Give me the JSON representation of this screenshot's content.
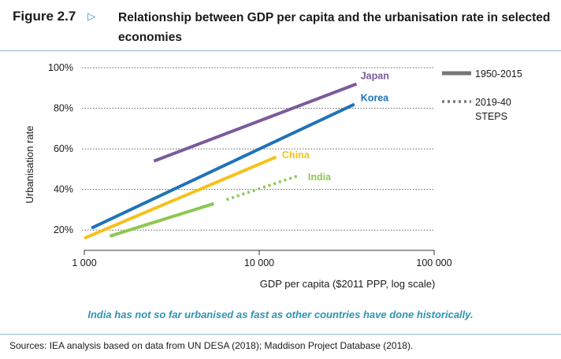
{
  "figure": {
    "label": "Figure 2.7",
    "arrow_icon": "triangle-right-outline-icon",
    "title": "Relationship between GDP per capita and the urbanisation rate in selected economies",
    "caption": "India has not so far urbanised as fast as other countries have done historically.",
    "source": "Sources: IEA analysis based on data from UN DESA (2018); Maddison Project Database (2018)."
  },
  "chart_data": {
    "type": "line",
    "title": "Relationship between GDP per capita and the urbanisation rate in selected economies",
    "xlabel": "GDP per capita ($2011 PPP, log scale)",
    "ylabel": "Urbanisation rate",
    "x_scale": "log",
    "xlim": [
      1000,
      100000
    ],
    "ylim": [
      10,
      100
    ],
    "x_ticks": [
      1000,
      10000,
      100000
    ],
    "x_tick_labels": [
      "1 000",
      "10 000",
      "100 000"
    ],
    "y_ticks": [
      20,
      40,
      60,
      80,
      100
    ],
    "y_tick_labels": [
      "20%",
      "40%",
      "60%",
      "80%",
      "100%"
    ],
    "grid": "horizontal dotted",
    "legend_position": "right",
    "legend": [
      {
        "label": "1950-2015",
        "style": "solid"
      },
      {
        "label": "2019-40 STEPS",
        "style": "dotted"
      }
    ],
    "series": [
      {
        "name": "Japan",
        "color": "#7b5a9c",
        "style": "solid",
        "points": [
          [
            2500,
            54
          ],
          [
            36000,
            92
          ]
        ]
      },
      {
        "name": "Korea",
        "color": "#1f73b7",
        "style": "solid",
        "points": [
          [
            1100,
            21
          ],
          [
            35000,
            82
          ]
        ]
      },
      {
        "name": "China",
        "color": "#f5c21b",
        "style": "solid",
        "points": [
          [
            1000,
            16
          ],
          [
            12500,
            56
          ]
        ]
      },
      {
        "name": "India",
        "color": "#8cc850",
        "style": "solid",
        "points": [
          [
            1400,
            17
          ],
          [
            5500,
            33
          ]
        ]
      },
      {
        "name": "India",
        "color": "#8cc850",
        "style": "dotted",
        "points": [
          [
            6500,
            35
          ],
          [
            17000,
            47
          ]
        ]
      }
    ],
    "series_labels": [
      {
        "name": "Japan",
        "color": "#7b5a9c",
        "x": 38000,
        "y": 96
      },
      {
        "name": "Korea",
        "color": "#1f73b7",
        "x": 38000,
        "y": 85
      },
      {
        "name": "China",
        "color": "#f5c21b",
        "x": 13500,
        "y": 57
      },
      {
        "name": "India",
        "color": "#8cc850",
        "x": 19000,
        "y": 46
      }
    ]
  }
}
